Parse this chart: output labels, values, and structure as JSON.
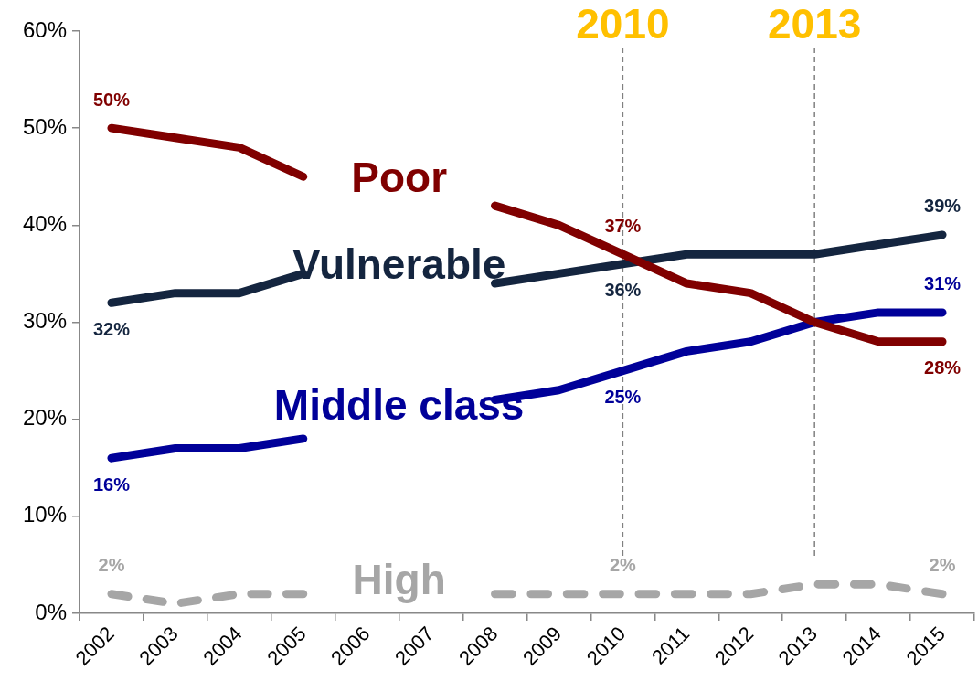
{
  "chart_data": {
    "type": "line",
    "categories": [
      "2002",
      "2003",
      "2004",
      "2005",
      "2006",
      "2007",
      "2008",
      "2009",
      "2010",
      "2011",
      "2012",
      "2013",
      "2014",
      "2015"
    ],
    "series": [
      {
        "name": "Poor",
        "color": "#800000",
        "values": [
          50,
          49,
          48,
          45,
          null,
          null,
          42,
          40,
          37,
          34,
          33,
          30,
          28,
          28
        ],
        "value_labels": [
          "50%",
          null,
          null,
          null,
          null,
          null,
          null,
          null,
          "37%",
          null,
          null,
          null,
          null,
          "28%"
        ]
      },
      {
        "name": "Vulnerable",
        "color": "#14253f",
        "values": [
          32,
          33,
          33,
          35,
          null,
          null,
          34,
          35,
          36,
          37,
          37,
          37,
          38,
          39
        ],
        "value_labels": [
          "32%",
          null,
          null,
          null,
          null,
          null,
          null,
          null,
          "36%",
          null,
          null,
          null,
          null,
          "39%"
        ]
      },
      {
        "name": "Middle class",
        "color": "#000099",
        "values": [
          16,
          17,
          17,
          18,
          null,
          null,
          22,
          23,
          25,
          27,
          28,
          30,
          31,
          31
        ],
        "value_labels": [
          "16%",
          null,
          null,
          null,
          null,
          null,
          null,
          null,
          "25%",
          null,
          null,
          null,
          null,
          "31%"
        ]
      },
      {
        "name": "High",
        "color": "#a6a6a6",
        "line_style": "dashed",
        "values": [
          2,
          1,
          2,
          2,
          null,
          null,
          2,
          2,
          2,
          2,
          2,
          3,
          3,
          2
        ],
        "value_labels": [
          "2%",
          null,
          null,
          null,
          null,
          null,
          null,
          null,
          "2%",
          null,
          null,
          null,
          null,
          "2%"
        ]
      }
    ],
    "ylim": [
      0,
      60
    ],
    "yticks": [
      {
        "value": 0,
        "label": "0%"
      },
      {
        "value": 10,
        "label": "10%"
      },
      {
        "value": 20,
        "label": "20%"
      },
      {
        "value": 30,
        "label": "30%"
      },
      {
        "value": 40,
        "label": "40%"
      },
      {
        "value": 50,
        "label": "50%"
      },
      {
        "value": 60,
        "label": "60%"
      }
    ],
    "ref_lines": [
      {
        "axis": "x",
        "value": "2010",
        "label": "2010",
        "color": "#808080",
        "line_style": "dashed"
      },
      {
        "axis": "x",
        "value": "2013",
        "label": "2013",
        "color": "#808080",
        "line_style": "dashed"
      }
    ],
    "grid": false,
    "legend": false,
    "marker": "none"
  }
}
